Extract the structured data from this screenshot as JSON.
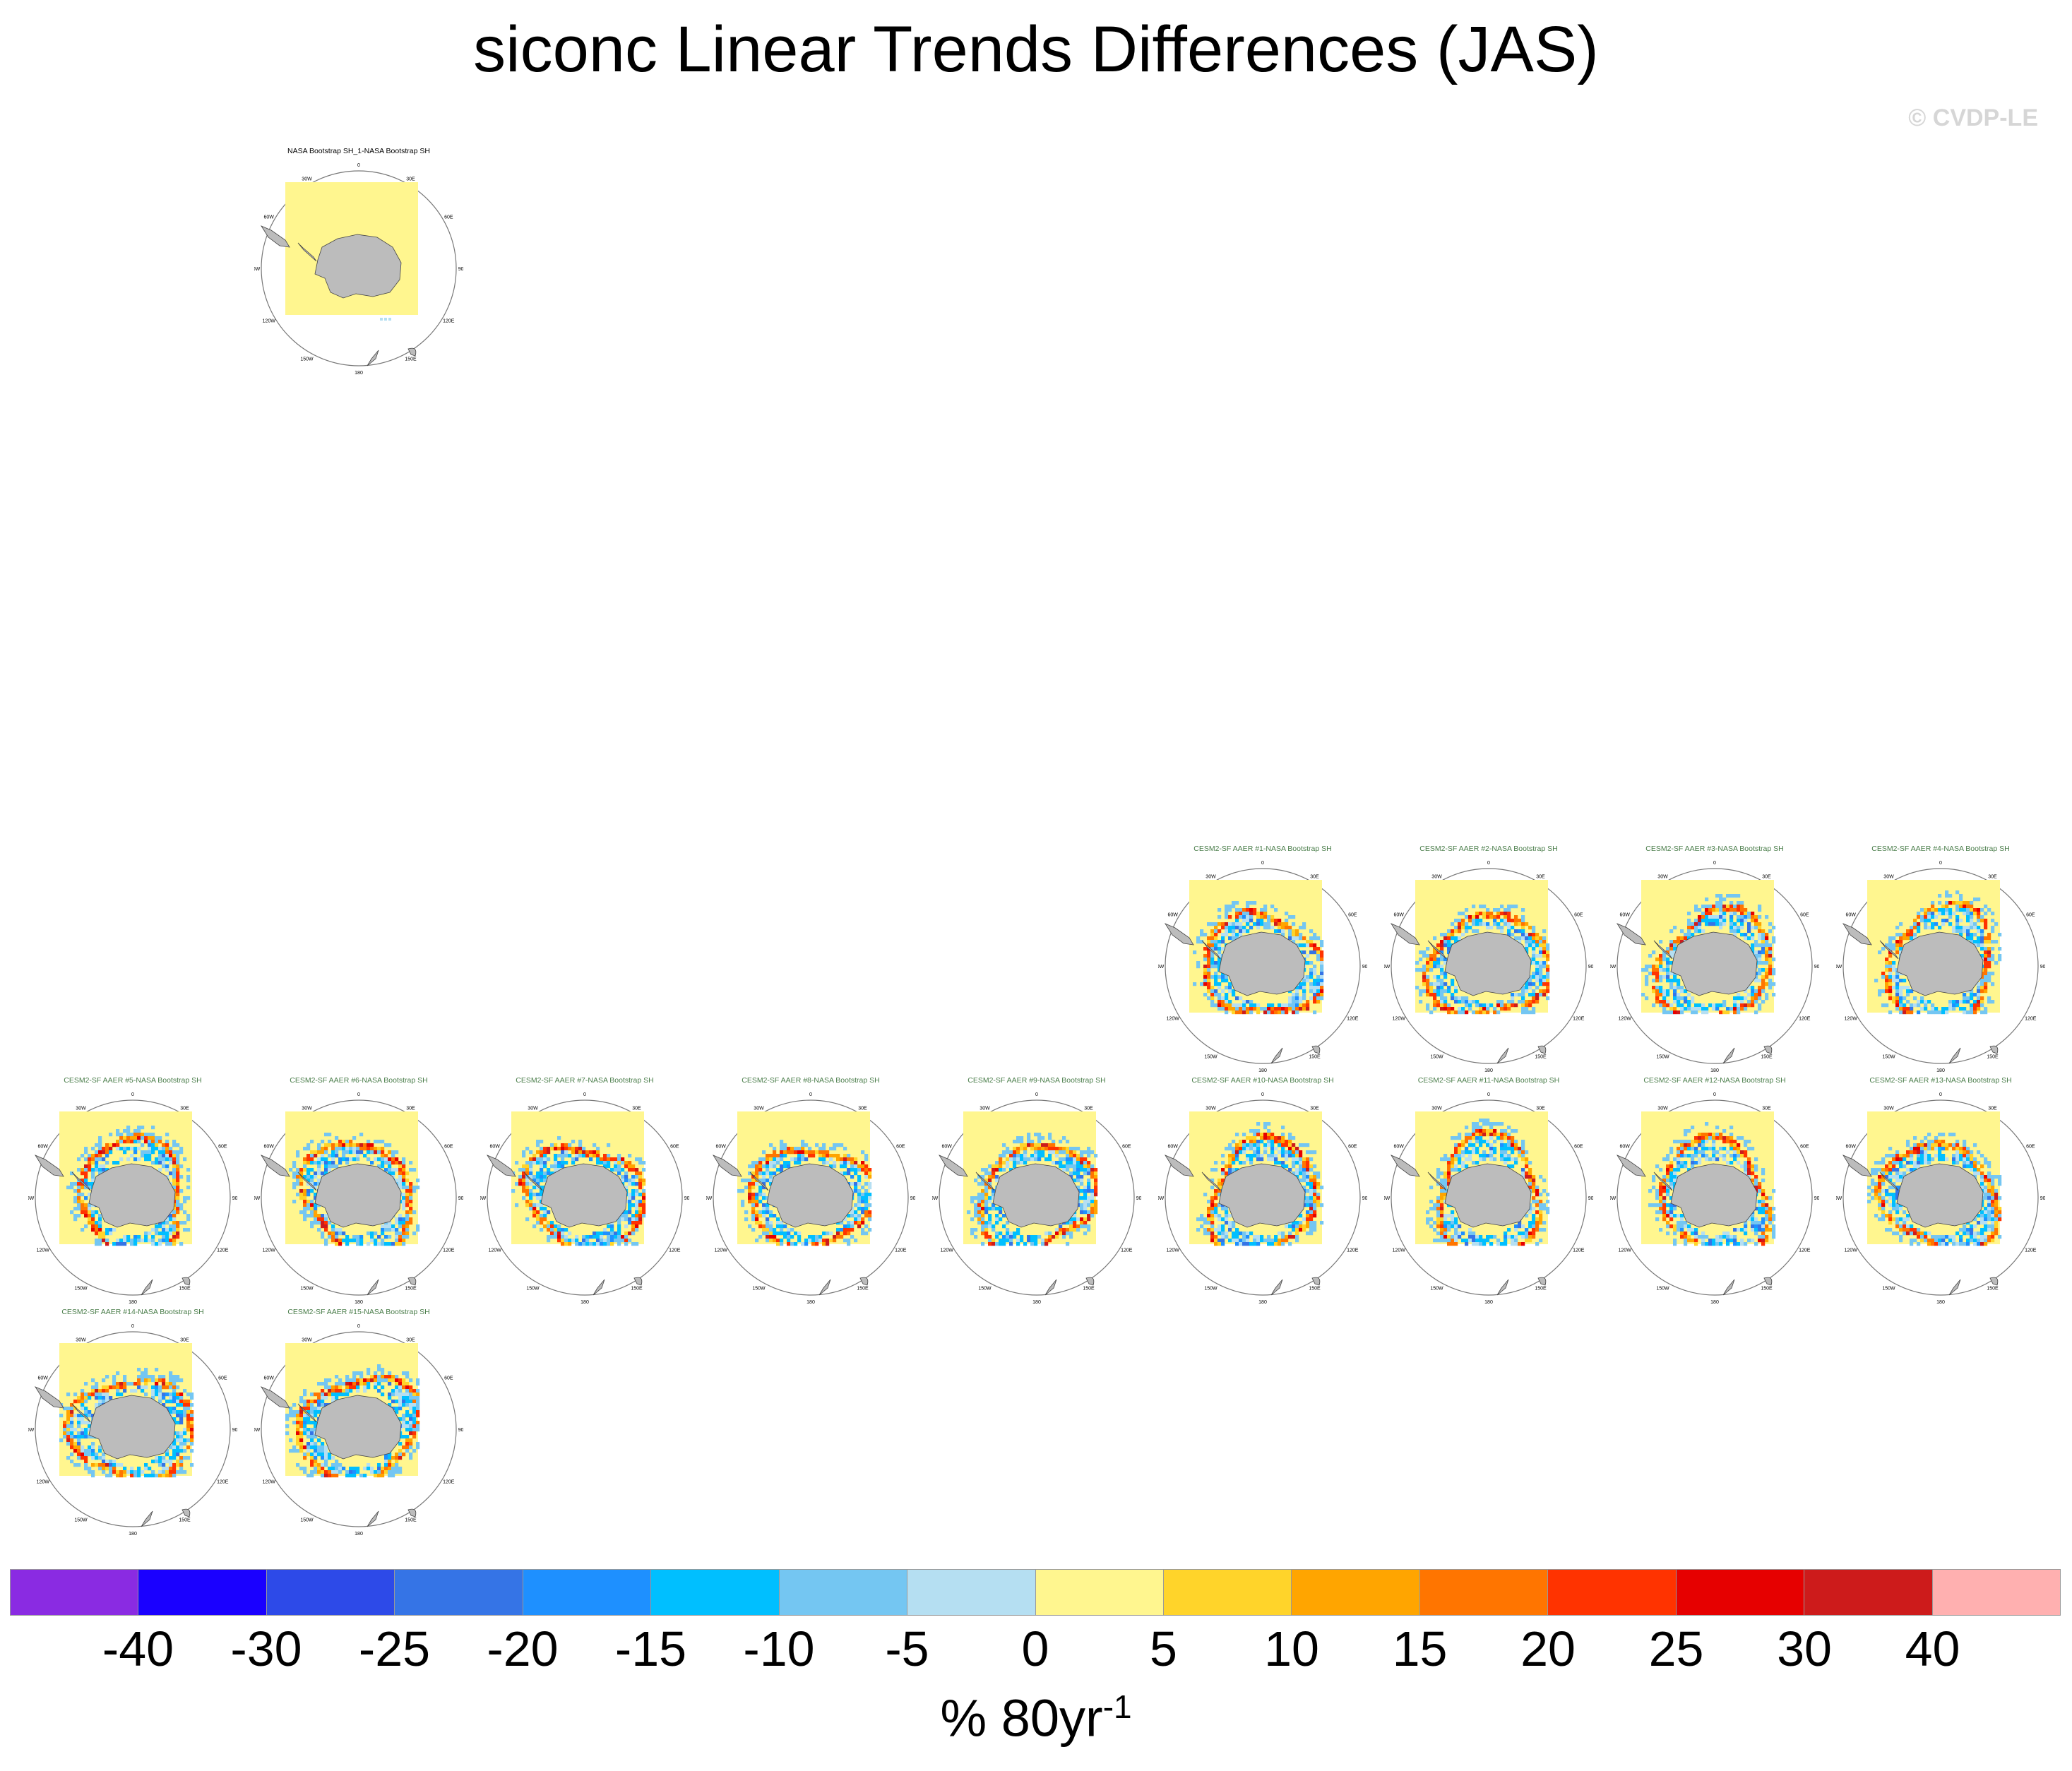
{
  "title": "siconc Linear Trends Differences (JAS)",
  "copyright": "© CVDP-LE",
  "lon_labels": [
    "0",
    "30E",
    "60E",
    "90E",
    "120E",
    "150E",
    "180",
    "150W",
    "120W",
    "90W",
    "60W",
    "30W"
  ],
  "panels": [
    {
      "title": "NASA Bootstrap SH_1-NASA Bootstrap SH",
      "kind": "obs"
    },
    {
      "title": "CESM2-SF AAER #1-NASA Bootstrap SH",
      "kind": "model"
    },
    {
      "title": "CESM2-SF AAER #2-NASA Bootstrap SH",
      "kind": "model"
    },
    {
      "title": "CESM2-SF AAER #3-NASA Bootstrap SH",
      "kind": "model"
    },
    {
      "title": "CESM2-SF AAER #4-NASA Bootstrap SH",
      "kind": "model"
    },
    {
      "title": "CESM2-SF AAER #5-NASA Bootstrap SH",
      "kind": "model"
    },
    {
      "title": "CESM2-SF AAER #6-NASA Bootstrap SH",
      "kind": "model"
    },
    {
      "title": "CESM2-SF AAER #7-NASA Bootstrap SH",
      "kind": "model"
    },
    {
      "title": "CESM2-SF AAER #8-NASA Bootstrap SH",
      "kind": "model"
    },
    {
      "title": "CESM2-SF AAER #9-NASA Bootstrap SH",
      "kind": "model"
    },
    {
      "title": "CESM2-SF AAER #10-NASA Bootstrap SH",
      "kind": "model"
    },
    {
      "title": "CESM2-SF AAER #11-NASA Bootstrap SH",
      "kind": "model"
    },
    {
      "title": "CESM2-SF AAER #12-NASA Bootstrap SH",
      "kind": "model"
    },
    {
      "title": "CESM2-SF AAER #13-NASA Bootstrap SH",
      "kind": "model"
    },
    {
      "title": "CESM2-SF AAER #14-NASA Bootstrap SH",
      "kind": "model"
    },
    {
      "title": "CESM2-SF AAER #15-NASA Bootstrap SH",
      "kind": "model"
    }
  ],
  "colorbar": {
    "colors": [
      "#8a2be2",
      "#1a00ff",
      "#2d4ae8",
      "#3574e6",
      "#1e90ff",
      "#00bfff",
      "#74c6f2",
      "#b5dff2",
      "#fff68f",
      "#ffd42a",
      "#ffa500",
      "#ff7500",
      "#ff3300",
      "#e60000",
      "#cd1b1b",
      "#ffb0b0"
    ],
    "ticks": [
      "-40",
      "-30",
      "-25",
      "-20",
      "-15",
      "-10",
      "-5",
      "0",
      "5",
      "10",
      "15",
      "20",
      "25",
      "30",
      "40"
    ],
    "units_main": "% 80yr",
    "units_sup": "-1"
  }
}
